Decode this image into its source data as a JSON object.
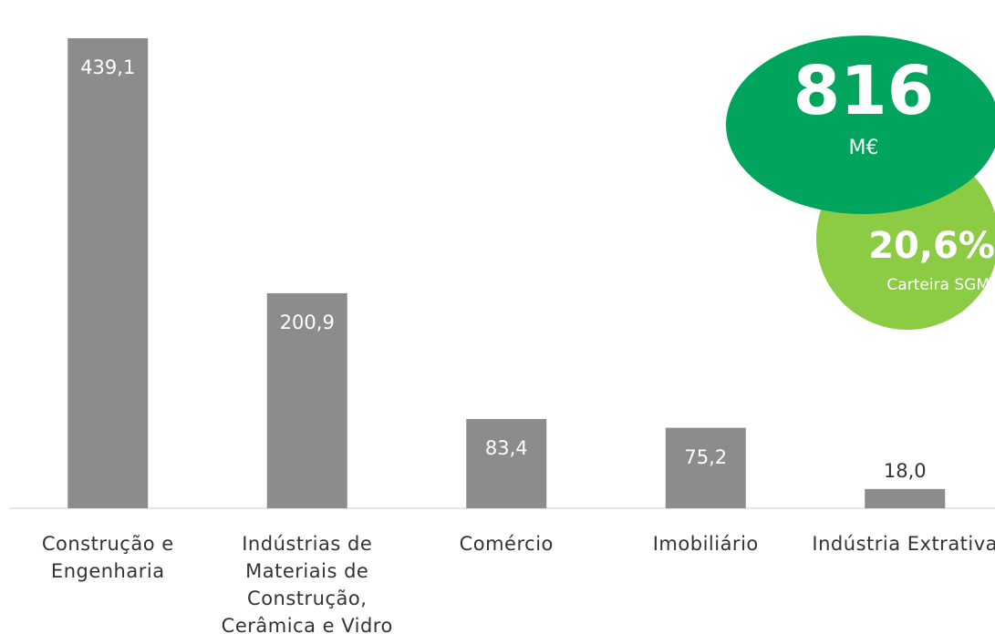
{
  "chart_data": {
    "type": "bar",
    "categories": [
      "Construção e Engenharia",
      "Indústrias de Materiais de Construção, Cerâmica e Vidro",
      "Comércio",
      "Imobiliário",
      "Indústria Extrativa"
    ],
    "values": [
      439.1,
      200.9,
      83.4,
      75.2,
      18.0
    ],
    "value_labels": [
      "439,1",
      "200,9",
      "83,4",
      "75,2",
      "18,0"
    ],
    "color": "#8c8c8c",
    "total": {
      "value": "816",
      "unit": "M€",
      "color": "#00a45c"
    },
    "share": {
      "value": "20,6%",
      "label": "Carteira SGM",
      "color": "#8ccc45"
    }
  }
}
